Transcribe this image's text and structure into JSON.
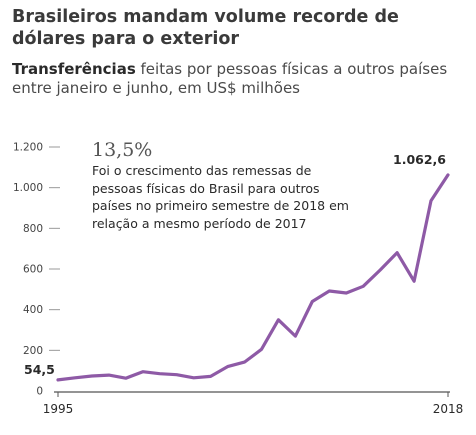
{
  "title": "Brasileiros mandam volume recorde de dólares para o exterior",
  "subtitle_bold": "Transferências",
  "subtitle_rest": " feitas por pessoas físicas a outros países entre janeiro e junho, em US$ milhões",
  "annotation": {
    "value": "13,5%",
    "text": "Foi o crescimento das remessas de pessoas físicas do Brasil para outros países no primeiro semestre de 2018 em relação a mesmo período de 2017"
  },
  "colors": {
    "line": "#8e5aa6",
    "axis": "#555555",
    "tick": "#999999"
  },
  "chart_data": {
    "type": "line",
    "title": "Brasileiros mandam volume recorde de dólares para o exterior",
    "xlabel": "",
    "ylabel": "",
    "x": [
      1995,
      1996,
      1997,
      1998,
      1999,
      2000,
      2001,
      2002,
      2003,
      2004,
      2005,
      2006,
      2007,
      2008,
      2009,
      2010,
      2011,
      2012,
      2013,
      2014,
      2015,
      2016,
      2017,
      2018
    ],
    "series": [
      {
        "values": [
          54.5,
          65,
          74,
          78,
          63,
          95,
          85,
          80,
          65,
          72,
          120,
          142,
          205,
          350,
          270,
          440,
          492,
          482,
          515,
          595,
          680,
          540,
          936,
          1062.6
        ]
      }
    ],
    "ylim": [
      0,
      1200
    ],
    "yticks": [
      0,
      200,
      400,
      600,
      800,
      1000,
      1200
    ],
    "ytick_labels": [
      "0",
      "200",
      "400",
      "600",
      "800",
      "1.000",
      "1.200"
    ],
    "xtick_labels": [
      "1995",
      "2018"
    ],
    "data_labels": [
      {
        "label": "54,5",
        "at": "start"
      },
      {
        "label": "1.062,6",
        "at": "end"
      }
    ],
    "grid": false,
    "legend": "none"
  }
}
